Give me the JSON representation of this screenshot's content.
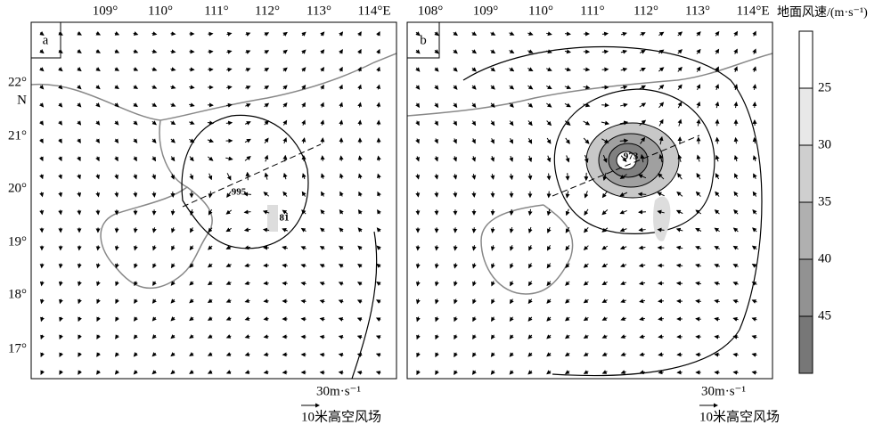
{
  "panels": [
    {
      "label": "a",
      "lon_ticks": [
        "109°",
        "110°",
        "111°",
        "112°",
        "113°",
        "114°E"
      ],
      "lat_ticks": [
        "22°",
        "N",
        "21°",
        "20°",
        "19°",
        "18°",
        "17°"
      ],
      "contour_labels": [
        "995",
        "81"
      ],
      "scale_arrow": "30m·s⁻¹",
      "legend": "10米高空风场"
    },
    {
      "label": "b",
      "lon_ticks": [
        "108°",
        "109°",
        "110°",
        "111°",
        "112°",
        "113°",
        "114°E"
      ],
      "contour_labels": [
        "973"
      ],
      "scale_arrow": "30m·s⁻¹",
      "legend": "10米高空风场"
    }
  ],
  "colorbar": {
    "title": "地面风速/(m·s⁻¹)",
    "ticks": [
      "25",
      "30",
      "35",
      "40",
      "45"
    ]
  }
}
